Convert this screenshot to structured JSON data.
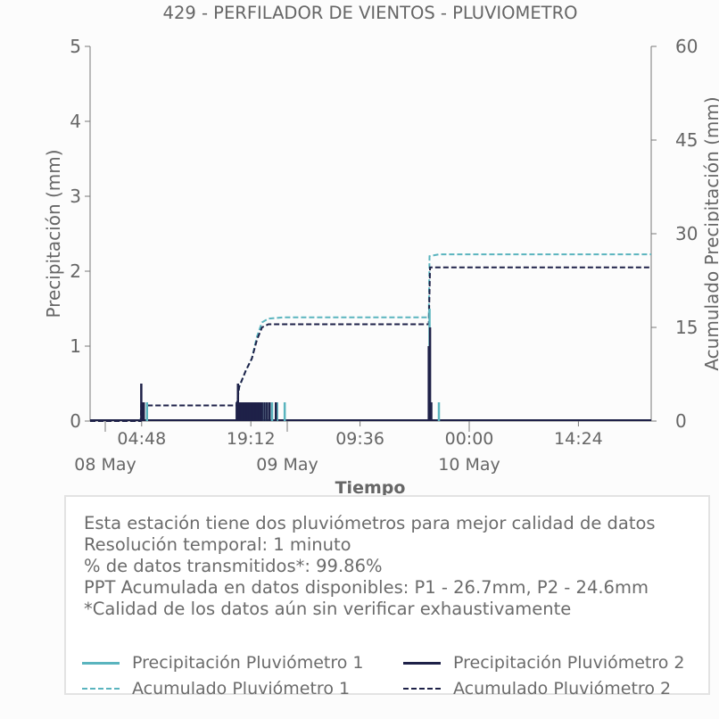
{
  "chart_data": {
    "type": "line",
    "title": "429 - PERFILADOR DE VIENTOS - PLUVIOMETRO",
    "xlabel": "Tiempo",
    "ylabel_left": "Precipitación (mm)",
    "ylabel_right": "Acumulado Precipitación (mm)",
    "ylim_left": [
      0,
      5
    ],
    "ylim_right": [
      0,
      60
    ],
    "yticks_left": [
      "0",
      "1",
      "2",
      "3",
      "4",
      "5"
    ],
    "yticks_right": [
      "0",
      "15",
      "30",
      "45",
      "60"
    ],
    "xlim": [
      "2024-05-07T22:00",
      "2024-05-11T00:00"
    ],
    "x_ticks": [
      {
        "t": "2024-05-08T04:48",
        "label": "04:48",
        "date_label": ""
      },
      {
        "t": "2024-05-08T19:12",
        "label": "19:12",
        "date_label": ""
      },
      {
        "t": "2024-05-09T09:36",
        "label": "09:36",
        "date_label": ""
      },
      {
        "t": "2024-05-10T00:00",
        "label": "00:00",
        "date_label": ""
      },
      {
        "t": "2024-05-10T14:24",
        "label": "14:24",
        "date_label": ""
      }
    ],
    "date_ticks": [
      {
        "t": "2024-05-08T00:00",
        "label": "08 May"
      },
      {
        "t": "2024-05-09T00:00",
        "label": "09 May"
      },
      {
        "t": "2024-05-10T00:00",
        "label": "10 May"
      }
    ],
    "grid": false,
    "series": [
      {
        "name": "Precipitación Pluviómetro 1",
        "axis": "left",
        "style": "bars",
        "color": "#5ab4be",
        "points": [
          [
            "2024-05-08T05:30",
            0.25
          ],
          [
            "2024-05-08T17:40",
            0.25
          ],
          [
            "2024-05-08T18:00",
            0.25
          ],
          [
            "2024-05-08T18:20",
            0.25
          ],
          [
            "2024-05-08T18:40",
            0.25
          ],
          [
            "2024-05-08T19:00",
            0.25
          ],
          [
            "2024-05-08T19:20",
            0.25
          ],
          [
            "2024-05-08T19:40",
            0.25
          ],
          [
            "2024-05-08T20:00",
            0.25
          ],
          [
            "2024-05-08T20:20",
            0.25
          ],
          [
            "2024-05-08T20:40",
            0.25
          ],
          [
            "2024-05-08T21:00",
            0.25
          ],
          [
            "2024-05-08T21:20",
            0.25
          ],
          [
            "2024-05-08T21:40",
            0.25
          ],
          [
            "2024-05-08T22:00",
            0.25
          ],
          [
            "2024-05-08T22:40",
            0.25
          ],
          [
            "2024-05-08T23:40",
            0.25
          ],
          [
            "2024-05-09T18:46",
            1.5
          ],
          [
            "2024-05-09T20:00",
            0.25
          ]
        ]
      },
      {
        "name": "Precipitación Pluviómetro 2",
        "axis": "left",
        "style": "bars",
        "color": "#1e2148",
        "points": [
          [
            "2024-05-08T04:45",
            0.5
          ],
          [
            "2024-05-08T04:55",
            0.25
          ],
          [
            "2024-05-08T05:05",
            0.25
          ],
          [
            "2024-05-08T17:20",
            0.25
          ],
          [
            "2024-05-08T17:30",
            0.5
          ],
          [
            "2024-05-08T17:40",
            0.25
          ],
          [
            "2024-05-08T17:50",
            0.25
          ],
          [
            "2024-05-08T18:00",
            0.25
          ],
          [
            "2024-05-08T18:10",
            0.25
          ],
          [
            "2024-05-08T18:20",
            0.25
          ],
          [
            "2024-05-08T18:30",
            0.25
          ],
          [
            "2024-05-08T18:40",
            0.25
          ],
          [
            "2024-05-08T18:50",
            0.25
          ],
          [
            "2024-05-08T19:00",
            0.25
          ],
          [
            "2024-05-08T19:10",
            0.25
          ],
          [
            "2024-05-08T19:20",
            0.25
          ],
          [
            "2024-05-08T19:30",
            0.25
          ],
          [
            "2024-05-08T19:40",
            0.25
          ],
          [
            "2024-05-08T19:50",
            0.25
          ],
          [
            "2024-05-08T20:00",
            0.25
          ],
          [
            "2024-05-08T20:10",
            0.25
          ],
          [
            "2024-05-08T20:20",
            0.25
          ],
          [
            "2024-05-08T20:30",
            0.25
          ],
          [
            "2024-05-08T20:40",
            0.25
          ],
          [
            "2024-05-08T21:00",
            0.25
          ],
          [
            "2024-05-08T21:20",
            0.25
          ],
          [
            "2024-05-08T21:40",
            0.25
          ],
          [
            "2024-05-08T22:30",
            0.25
          ],
          [
            "2024-05-09T18:40",
            1.0
          ],
          [
            "2024-05-09T18:50",
            1.25
          ],
          [
            "2024-05-09T19:00",
            0.25
          ]
        ]
      },
      {
        "name": "Acumulado Pluviómetro 1",
        "axis": "right",
        "style": "dashed",
        "color": "#5ab4be",
        "points": [
          [
            "2024-05-07T22:00",
            0.0
          ],
          [
            "2024-05-08T04:40",
            0.0
          ],
          [
            "2024-05-08T04:45",
            2.5
          ],
          [
            "2024-05-08T17:20",
            2.5
          ],
          [
            "2024-05-08T17:40",
            5.5
          ],
          [
            "2024-05-08T18:30",
            8.0
          ],
          [
            "2024-05-08T19:20",
            10.0
          ],
          [
            "2024-05-08T20:00",
            13.5
          ],
          [
            "2024-05-08T20:40",
            15.8
          ],
          [
            "2024-05-08T21:30",
            16.4
          ],
          [
            "2024-05-08T23:30",
            16.6
          ],
          [
            "2024-05-09T18:40",
            16.6
          ],
          [
            "2024-05-09T18:46",
            26.4
          ],
          [
            "2024-05-09T20:00",
            26.7
          ],
          [
            "2024-05-11T00:00",
            26.7
          ]
        ]
      },
      {
        "name": "Acumulado Pluviómetro 2",
        "axis": "right",
        "style": "dashed",
        "color": "#1e2148",
        "points": [
          [
            "2024-05-07T22:00",
            0.0
          ],
          [
            "2024-05-08T04:40",
            0.0
          ],
          [
            "2024-05-08T04:45",
            2.5
          ],
          [
            "2024-05-08T17:20",
            2.5
          ],
          [
            "2024-05-08T17:40",
            5.5
          ],
          [
            "2024-05-08T18:30",
            8.0
          ],
          [
            "2024-05-08T19:20",
            10.0
          ],
          [
            "2024-05-08T20:00",
            13.0
          ],
          [
            "2024-05-08T20:40",
            15.0
          ],
          [
            "2024-05-08T21:30",
            15.5
          ],
          [
            "2024-05-08T23:30",
            15.5
          ],
          [
            "2024-05-09T18:40",
            15.5
          ],
          [
            "2024-05-09T18:50",
            24.6
          ],
          [
            "2024-05-11T00:00",
            24.6
          ]
        ]
      }
    ]
  },
  "info": {
    "lines": [
      "Esta estación tiene dos pluviómetros para mejor calidad de datos",
      "Resolución temporal: 1 minuto",
      "% de datos transmitidos*: 99.86%",
      "PPT Acumulada en datos disponibles: P1 - 26.7mm, P2 - 24.6mm",
      "*Calidad de los datos aún sin verificar exhaustivamente"
    ]
  },
  "legend": [
    {
      "label": "Precipitación Pluviómetro 1",
      "style": "solid",
      "color": "#5ab4be"
    },
    {
      "label": "Precipitación Pluviómetro 2",
      "style": "solid",
      "color": "#1e2148"
    },
    {
      "label": "Acumulado Pluviómetro 1",
      "style": "dash",
      "color": "#5ab4be"
    },
    {
      "label": "Acumulado Pluviómetro 2",
      "style": "dash",
      "color": "#1e2148"
    }
  ]
}
